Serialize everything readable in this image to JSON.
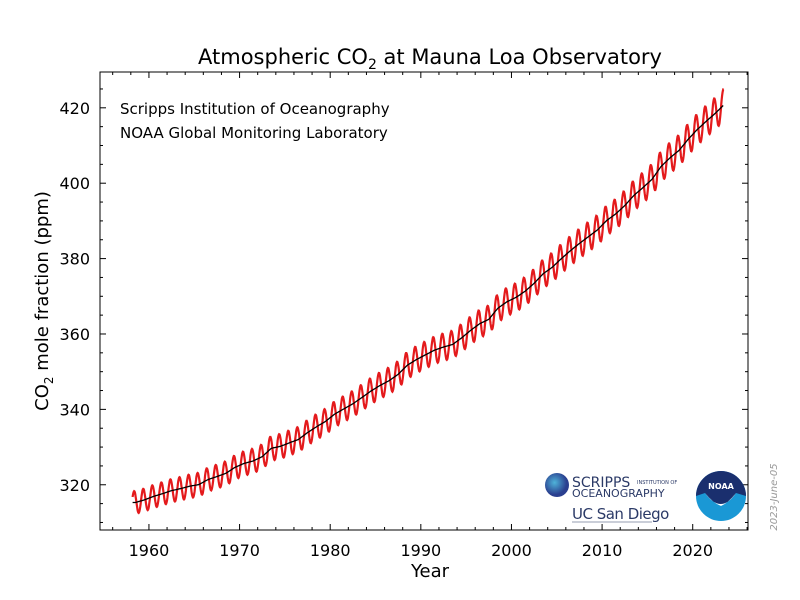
{
  "chart_data": {
    "type": "line",
    "title_main": "Atmospheric CO",
    "title_sub": "2",
    "title_rest": " at Mauna Loa Observatory",
    "ylabel_main": "CO",
    "ylabel_sub": "2",
    "ylabel_rest": " mole fraction (ppm)",
    "xlabel": "Year",
    "xlim": [
      1954.6,
      2026.1
    ],
    "ylim": [
      308,
      429.5
    ],
    "xticks": [
      1960,
      1970,
      1980,
      1990,
      2000,
      2010,
      2020
    ],
    "xtick_labels": [
      "1960",
      "1970",
      "1980",
      "1990",
      "2000",
      "2010",
      "2020"
    ],
    "yticks": [
      320,
      340,
      360,
      380,
      400,
      420
    ],
    "ytick_labels": [
      "320",
      "340",
      "360",
      "380",
      "400",
      "420"
    ],
    "grid": false,
    "annotations": [
      "Scripps Institution of Oceanography",
      "NOAA Global Monitoring Laboratory"
    ],
    "date_stamp": "2023-June-05",
    "series": [
      {
        "role": "monthly mean (with seasonal cycle)",
        "color": "#e41a1c",
        "seasonal_amplitude_ppm": [
          3.0,
          4.2
        ]
      },
      {
        "role": "seasonally adjusted trend",
        "color": "#000000",
        "years": [
          1958.5,
          1959.5,
          1960.5,
          1961.5,
          1962.5,
          1963.5,
          1964.5,
          1965.5,
          1966.5,
          1967.5,
          1968.5,
          1969.5,
          1970.5,
          1971.5,
          1972.5,
          1973.5,
          1974.5,
          1975.5,
          1976.5,
          1977.5,
          1978.5,
          1979.5,
          1980.5,
          1981.5,
          1982.5,
          1983.5,
          1984.5,
          1985.5,
          1986.5,
          1987.5,
          1988.5,
          1989.5,
          1990.5,
          1991.5,
          1992.5,
          1993.5,
          1994.5,
          1995.5,
          1996.5,
          1997.5,
          1998.5,
          1999.5,
          2000.5,
          2001.5,
          2002.5,
          2003.5,
          2004.5,
          2005.5,
          2006.5,
          2007.5,
          2008.5,
          2009.5,
          2010.5,
          2011.5,
          2012.5,
          2013.5,
          2014.5,
          2015.5,
          2016.5,
          2017.5,
          2018.5,
          2019.5,
          2020.5,
          2021.5,
          2022.5,
          2023.4
        ],
        "values": [
          315.3,
          315.98,
          316.91,
          317.64,
          318.45,
          318.99,
          319.62,
          320.04,
          321.37,
          322.18,
          323.05,
          324.62,
          325.68,
          326.32,
          327.46,
          329.68,
          330.19,
          331.13,
          332.03,
          333.84,
          335.41,
          336.84,
          338.76,
          340.12,
          341.48,
          343.15,
          344.87,
          346.35,
          347.61,
          349.31,
          351.69,
          353.2,
          354.45,
          355.7,
          356.54,
          357.21,
          358.96,
          360.97,
          362.74,
          363.88,
          366.84,
          368.54,
          369.71,
          371.32,
          373.45,
          375.98,
          377.7,
          379.98,
          382.09,
          384.02,
          385.83,
          387.64,
          390.1,
          391.85,
          394.06,
          396.74,
          398.81,
          401.01,
          404.41,
          406.76,
          408.72,
          411.66,
          414.24,
          416.45,
          418.56,
          420.7
        ]
      }
    ]
  },
  "logos": {
    "scripps_line1": "SCRIPPS",
    "scripps_line2": "INSTITUTION OF",
    "scripps_line3": "OCEANOGRAPHY",
    "ucsd": "UC San Diego",
    "noaa": "NOAA"
  }
}
